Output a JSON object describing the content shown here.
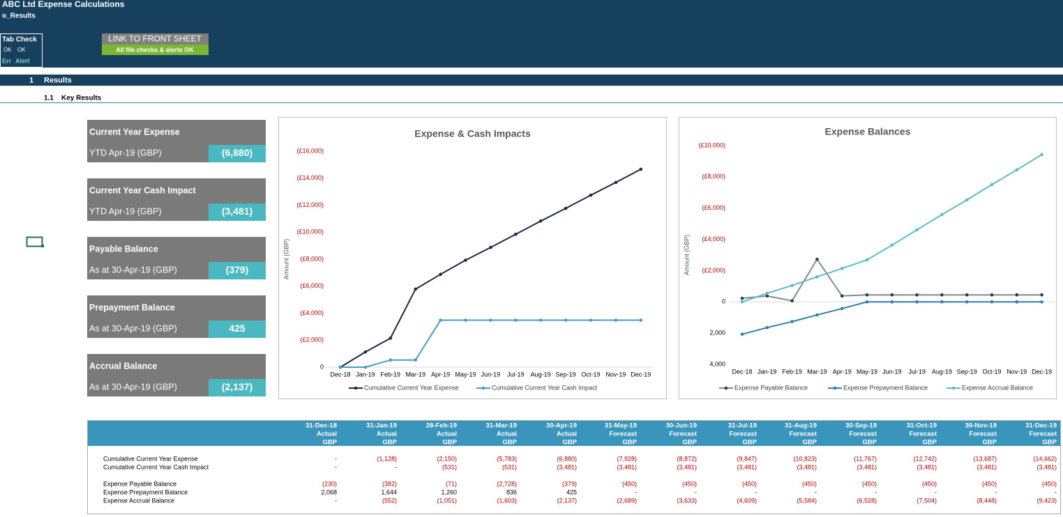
{
  "header": {
    "title": "ABC Ltd Expense Calculations",
    "sheet": "o_Results"
  },
  "tab_check": {
    "title": "Tab Check",
    "row1": [
      "OK",
      "OK"
    ],
    "row2": [
      "Err",
      "Alert"
    ]
  },
  "link": {
    "button": "LINK TO FRONT SHEET",
    "status": "All file checks & alerts OK"
  },
  "section": {
    "number": "1",
    "title": "Results"
  },
  "subsection": {
    "number": "1.1",
    "title": "Key Results"
  },
  "kpis": [
    {
      "title": "Current Year Expense",
      "label": "YTD Apr-19 (GBP)",
      "value": "(6,880)"
    },
    {
      "title": "Current Year Cash Impact",
      "label": "YTD Apr-19 (GBP)",
      "value": "(3,481)"
    },
    {
      "title": "Payable Balance",
      "label": "As at 30-Apr-19 (GBP)",
      "value": "(379)"
    },
    {
      "title": "Prepayment Balance",
      "label": "As at 30-Apr-19 (GBP)",
      "value": "425"
    },
    {
      "title": "Accrual Balance",
      "label": "As at 30-Apr-19 (GBP)",
      "value": "(2,137)"
    }
  ],
  "charts": [
    {
      "type": "line",
      "title": "Expense & Cash Impacts",
      "y_label": "Amount (GBP)",
      "categories": [
        "Dec-18",
        "Jan-19",
        "Feb-19",
        "Mar-19",
        "Apr-19",
        "May-19",
        "Jun-19",
        "Jul-19",
        "Aug-19",
        "Sep-19",
        "Oct-19",
        "Nov-19",
        "Dec-19"
      ],
      "ylim": [
        0,
        -16000
      ],
      "yticks": [
        0,
        {
          "value": -2000,
          "label": "(£2,000)"
        },
        {
          "value": -4000,
          "label": "(£4,000)"
        },
        {
          "value": -6000,
          "label": "(£6,000)"
        },
        {
          "value": -8000,
          "label": "(£8,000)"
        },
        {
          "value": -10000,
          "label": "(£10,000)"
        },
        {
          "value": -12000,
          "label": "(£12,000)"
        },
        {
          "value": -14000,
          "label": "(£14,000)"
        },
        {
          "value": -16000,
          "label": "(£16,000)"
        }
      ],
      "series": [
        {
          "name": "Cumulative Current Year Expense",
          "color": "#1b2a47",
          "values": [
            0,
            -1128,
            -2150,
            -5783,
            -6880,
            -7928,
            -8872,
            -9847,
            -10823,
            -11767,
            -12742,
            -13687,
            -14662
          ]
        },
        {
          "name": "Cumulative Current Year Cash Impact",
          "color": "#4a9cc4",
          "values": [
            0,
            0,
            -531,
            -531,
            -3481,
            -3481,
            -3481,
            -3481,
            -3481,
            -3481,
            -3481,
            -3481,
            -3481
          ]
        }
      ]
    },
    {
      "type": "line",
      "title": "Expense Balances",
      "y_label": "Amount (GBP)",
      "categories": [
        "Dec-18",
        "Jan-19",
        "Feb-19",
        "Mar-19",
        "Apr-19",
        "May-19",
        "Jun-19",
        "Jul-19",
        "Aug-19",
        "Sep-19",
        "Oct-19",
        "Nov-19",
        "Dec-19"
      ],
      "ylim": [
        4000,
        -10000
      ],
      "yticks": [
        {
          "value": 4000,
          "label": "4,000"
        },
        {
          "value": 2000,
          "label": "2,000"
        },
        0,
        {
          "value": -2000,
          "label": "(£2,000)"
        },
        {
          "value": -4000,
          "label": "(£4,000)"
        },
        {
          "value": -6000,
          "label": "(£6,000)"
        },
        {
          "value": -8000,
          "label": "(£8,000)"
        },
        {
          "value": -10000,
          "label": "(£10,000)"
        }
      ],
      "series": [
        {
          "name": "Expense Payable Balance",
          "color": "#7f8c8d",
          "marker": "#2b3a4f",
          "values": [
            -230,
            -382,
            -71,
            -2728,
            -379,
            -450,
            -450,
            -450,
            -450,
            -450,
            -450,
            -450,
            -450
          ]
        },
        {
          "name": "Expense Prepayment Balance",
          "color": "#2e7fae",
          "values": [
            2068,
            1644,
            1260,
            836,
            425,
            0,
            0,
            0,
            0,
            0,
            0,
            0,
            0
          ]
        },
        {
          "name": "Expense Accrual Balance",
          "color": "#5bbcc4",
          "values": [
            0,
            -552,
            -1051,
            -1603,
            -2137,
            -2689,
            -3633,
            -4609,
            -5584,
            -6528,
            -7504,
            -8448,
            -9423
          ]
        }
      ]
    }
  ],
  "table": {
    "columns": [
      [
        "31-Dec-18",
        "Actual",
        "GBP"
      ],
      [
        "31-Jan-19",
        "Actual",
        "GBP"
      ],
      [
        "28-Feb-19",
        "Actual",
        "GBP"
      ],
      [
        "31-Mar-19",
        "Actual",
        "GBP"
      ],
      [
        "30-Apr-19",
        "Actual",
        "GBP"
      ],
      [
        "31-May-19",
        "Forecast",
        "GBP"
      ],
      [
        "30-Jun-19",
        "Forecast",
        "GBP"
      ],
      [
        "31-Jul-19",
        "Forecast",
        "GBP"
      ],
      [
        "31-Aug-19",
        "Forecast",
        "GBP"
      ],
      [
        "30-Sep-19",
        "Forecast",
        "GBP"
      ],
      [
        "31-Oct-19",
        "Forecast",
        "GBP"
      ],
      [
        "30-Nov-19",
        "Forecast",
        "GBP"
      ],
      [
        "31-Dec-19",
        "Forecast",
        "GBP"
      ]
    ],
    "rows": [
      {
        "label": "Cumulative Current Year Expense",
        "values": [
          "-",
          "(1,128)",
          "(2,150)",
          "(5,783)",
          "(6,880)",
          "(7,928)",
          "(8,872)",
          "(9,847)",
          "(10,823)",
          "(11,767)",
          "(12,742)",
          "(13,687)",
          "(14,662)"
        ]
      },
      {
        "label": "Cumulative Current Year Cash Impact",
        "values": [
          "-",
          "-",
          "(531)",
          "(531)",
          "(3,481)",
          "(3,481)",
          "(3,481)",
          "(3,481)",
          "(3,481)",
          "(3,481)",
          "(3,481)",
          "(3,481)",
          "(3,481)"
        ]
      },
      {
        "label": "Expense Payable Balance",
        "values": [
          "(230)",
          "(382)",
          "(71)",
          "(2,728)",
          "(379)",
          "(450)",
          "(450)",
          "(450)",
          "(450)",
          "(450)",
          "(450)",
          "(450)",
          "(450)"
        ]
      },
      {
        "label": "Expense Prepayment Balance",
        "values": [
          "2,068",
          "1,644",
          "1,260",
          "836",
          "425",
          "-",
          "-",
          "-",
          "-",
          "-",
          "-",
          "-",
          "-"
        ]
      },
      {
        "label": "Expense Accrual Balance",
        "values": [
          "-",
          "(552)",
          "(1,051)",
          "(1,603)",
          "(2,137)",
          "(2,689)",
          "(3,633)",
          "(4,609)",
          "(5,584)",
          "(6,528)",
          "(7,504)",
          "(8,448)",
          "(9,423)"
        ]
      }
    ]
  }
}
